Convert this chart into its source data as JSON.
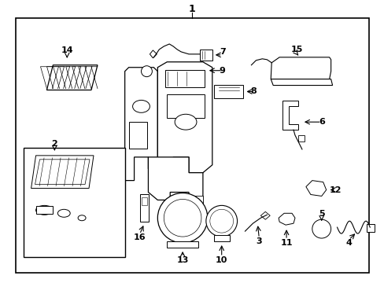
{
  "background_color": "#ffffff",
  "line_color": "#000000",
  "text_color": "#000000",
  "fig_width": 4.89,
  "fig_height": 3.6,
  "dpi": 100
}
